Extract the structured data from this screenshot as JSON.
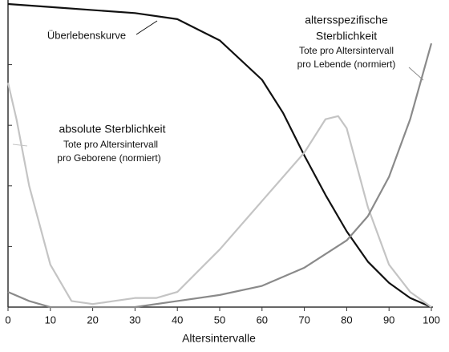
{
  "chart_data": {
    "type": "line",
    "xlabel": "Altersintervalle",
    "xlim": [
      0,
      100
    ],
    "xticks": [
      0,
      10,
      20,
      30,
      40,
      50,
      60,
      70,
      80,
      90,
      100
    ],
    "ylim": [
      0,
      1
    ],
    "yticks": [
      0.2,
      0.4,
      0.6,
      0.8
    ],
    "series": [
      {
        "color": "#111111",
        "x": [
          0,
          10,
          20,
          30,
          40,
          50,
          60,
          65,
          70,
          75,
          80,
          85,
          90,
          95,
          100
        ],
        "values": [
          1.0,
          0.99,
          0.98,
          0.97,
          0.95,
          0.88,
          0.75,
          0.64,
          0.5,
          0.37,
          0.25,
          0.15,
          0.08,
          0.03,
          0
        ],
        "annotation": [
          "Überlebenskurve"
        ]
      },
      {
        "color": "#c4c4c4",
        "x": [
          0,
          2,
          5,
          10,
          15,
          20,
          25,
          30,
          35,
          40,
          50,
          60,
          70,
          75,
          78,
          80,
          85,
          90,
          95,
          100
        ],
        "values": [
          0.74,
          0.62,
          0.4,
          0.14,
          0.02,
          0.01,
          0.02,
          0.03,
          0.03,
          0.05,
          0.19,
          0.35,
          0.51,
          0.62,
          0.63,
          0.59,
          0.33,
          0.14,
          0.05,
          0
        ],
        "annotation": [
          "absolute Sterblichkeit",
          "Tote pro Altersintervall",
          "pro Geborene (normiert)"
        ]
      },
      {
        "color": "#8a8a8a",
        "x": [
          0,
          5,
          10,
          20,
          30,
          40,
          50,
          60,
          70,
          80,
          85,
          90,
          95,
          100
        ],
        "values": [
          0.05,
          0.02,
          0.0,
          0.0,
          0.0,
          0.02,
          0.04,
          0.07,
          0.13,
          0.22,
          0.3,
          0.43,
          0.62,
          0.87
        ],
        "annotation": [
          "altersspezifische",
          "Sterblichkeit",
          "Tote pro Altersintervall",
          "pro Lebende (normiert)"
        ]
      }
    ]
  }
}
